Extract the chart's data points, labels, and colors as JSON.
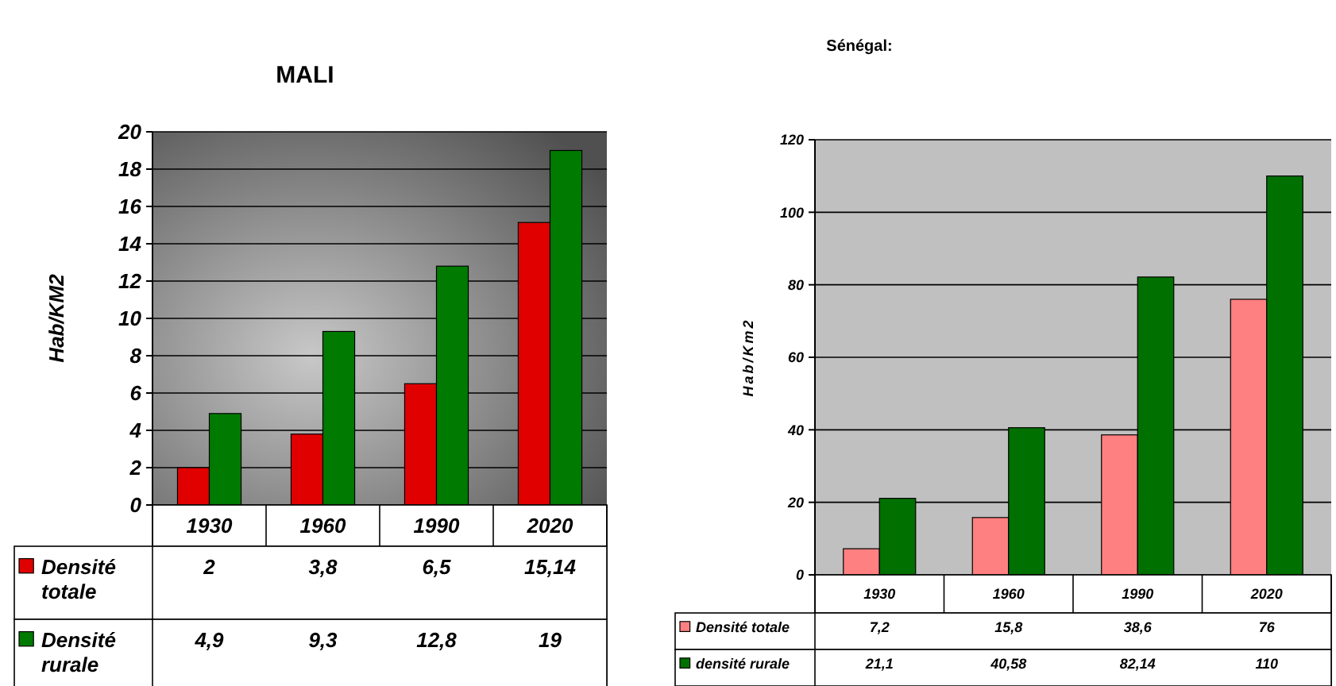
{
  "chart_data": [
    {
      "type": "bar",
      "title": "MALI",
      "ylabel": "Hab/KM2",
      "categories": [
        "1930",
        "1960",
        "1990",
        "2020"
      ],
      "series": [
        {
          "name": "Densité totale",
          "color": "#e00000",
          "values": [
            2,
            3.8,
            6.5,
            15.14
          ],
          "value_labels": [
            "2",
            "3,8",
            "6,5",
            "15,14"
          ]
        },
        {
          "name": "Densité rurale",
          "color": "#007a00",
          "values": [
            4.9,
            9.3,
            12.8,
            19
          ],
          "value_labels": [
            "4,9",
            "9,3",
            "12,8",
            "19"
          ]
        }
      ],
      "ylim": [
        0,
        20
      ],
      "yticks": [
        0,
        2,
        4,
        6,
        8,
        10,
        12,
        14,
        16,
        18,
        20
      ],
      "grid": "y",
      "legend": "bottom"
    },
    {
      "type": "bar",
      "title": "Sénégal:",
      "ylabel": "Hab/Km2",
      "categories": [
        "1930",
        "1960",
        "1990",
        "2020"
      ],
      "series": [
        {
          "name": "Densité totale",
          "color": "#ff8080",
          "values": [
            7.2,
            15.8,
            38.6,
            76
          ],
          "value_labels": [
            "7,2",
            "15,8",
            "38,6",
            "76"
          ]
        },
        {
          "name": "densité rurale",
          "color": "#007000",
          "values": [
            21.1,
            40.58,
            82.14,
            110
          ],
          "value_labels": [
            "21,1",
            "40,58",
            "82,14",
            "110"
          ]
        }
      ],
      "ylim": [
        0,
        120
      ],
      "yticks": [
        0,
        20,
        40,
        60,
        80,
        100,
        120
      ],
      "grid": "y",
      "legend": "bottom"
    }
  ]
}
